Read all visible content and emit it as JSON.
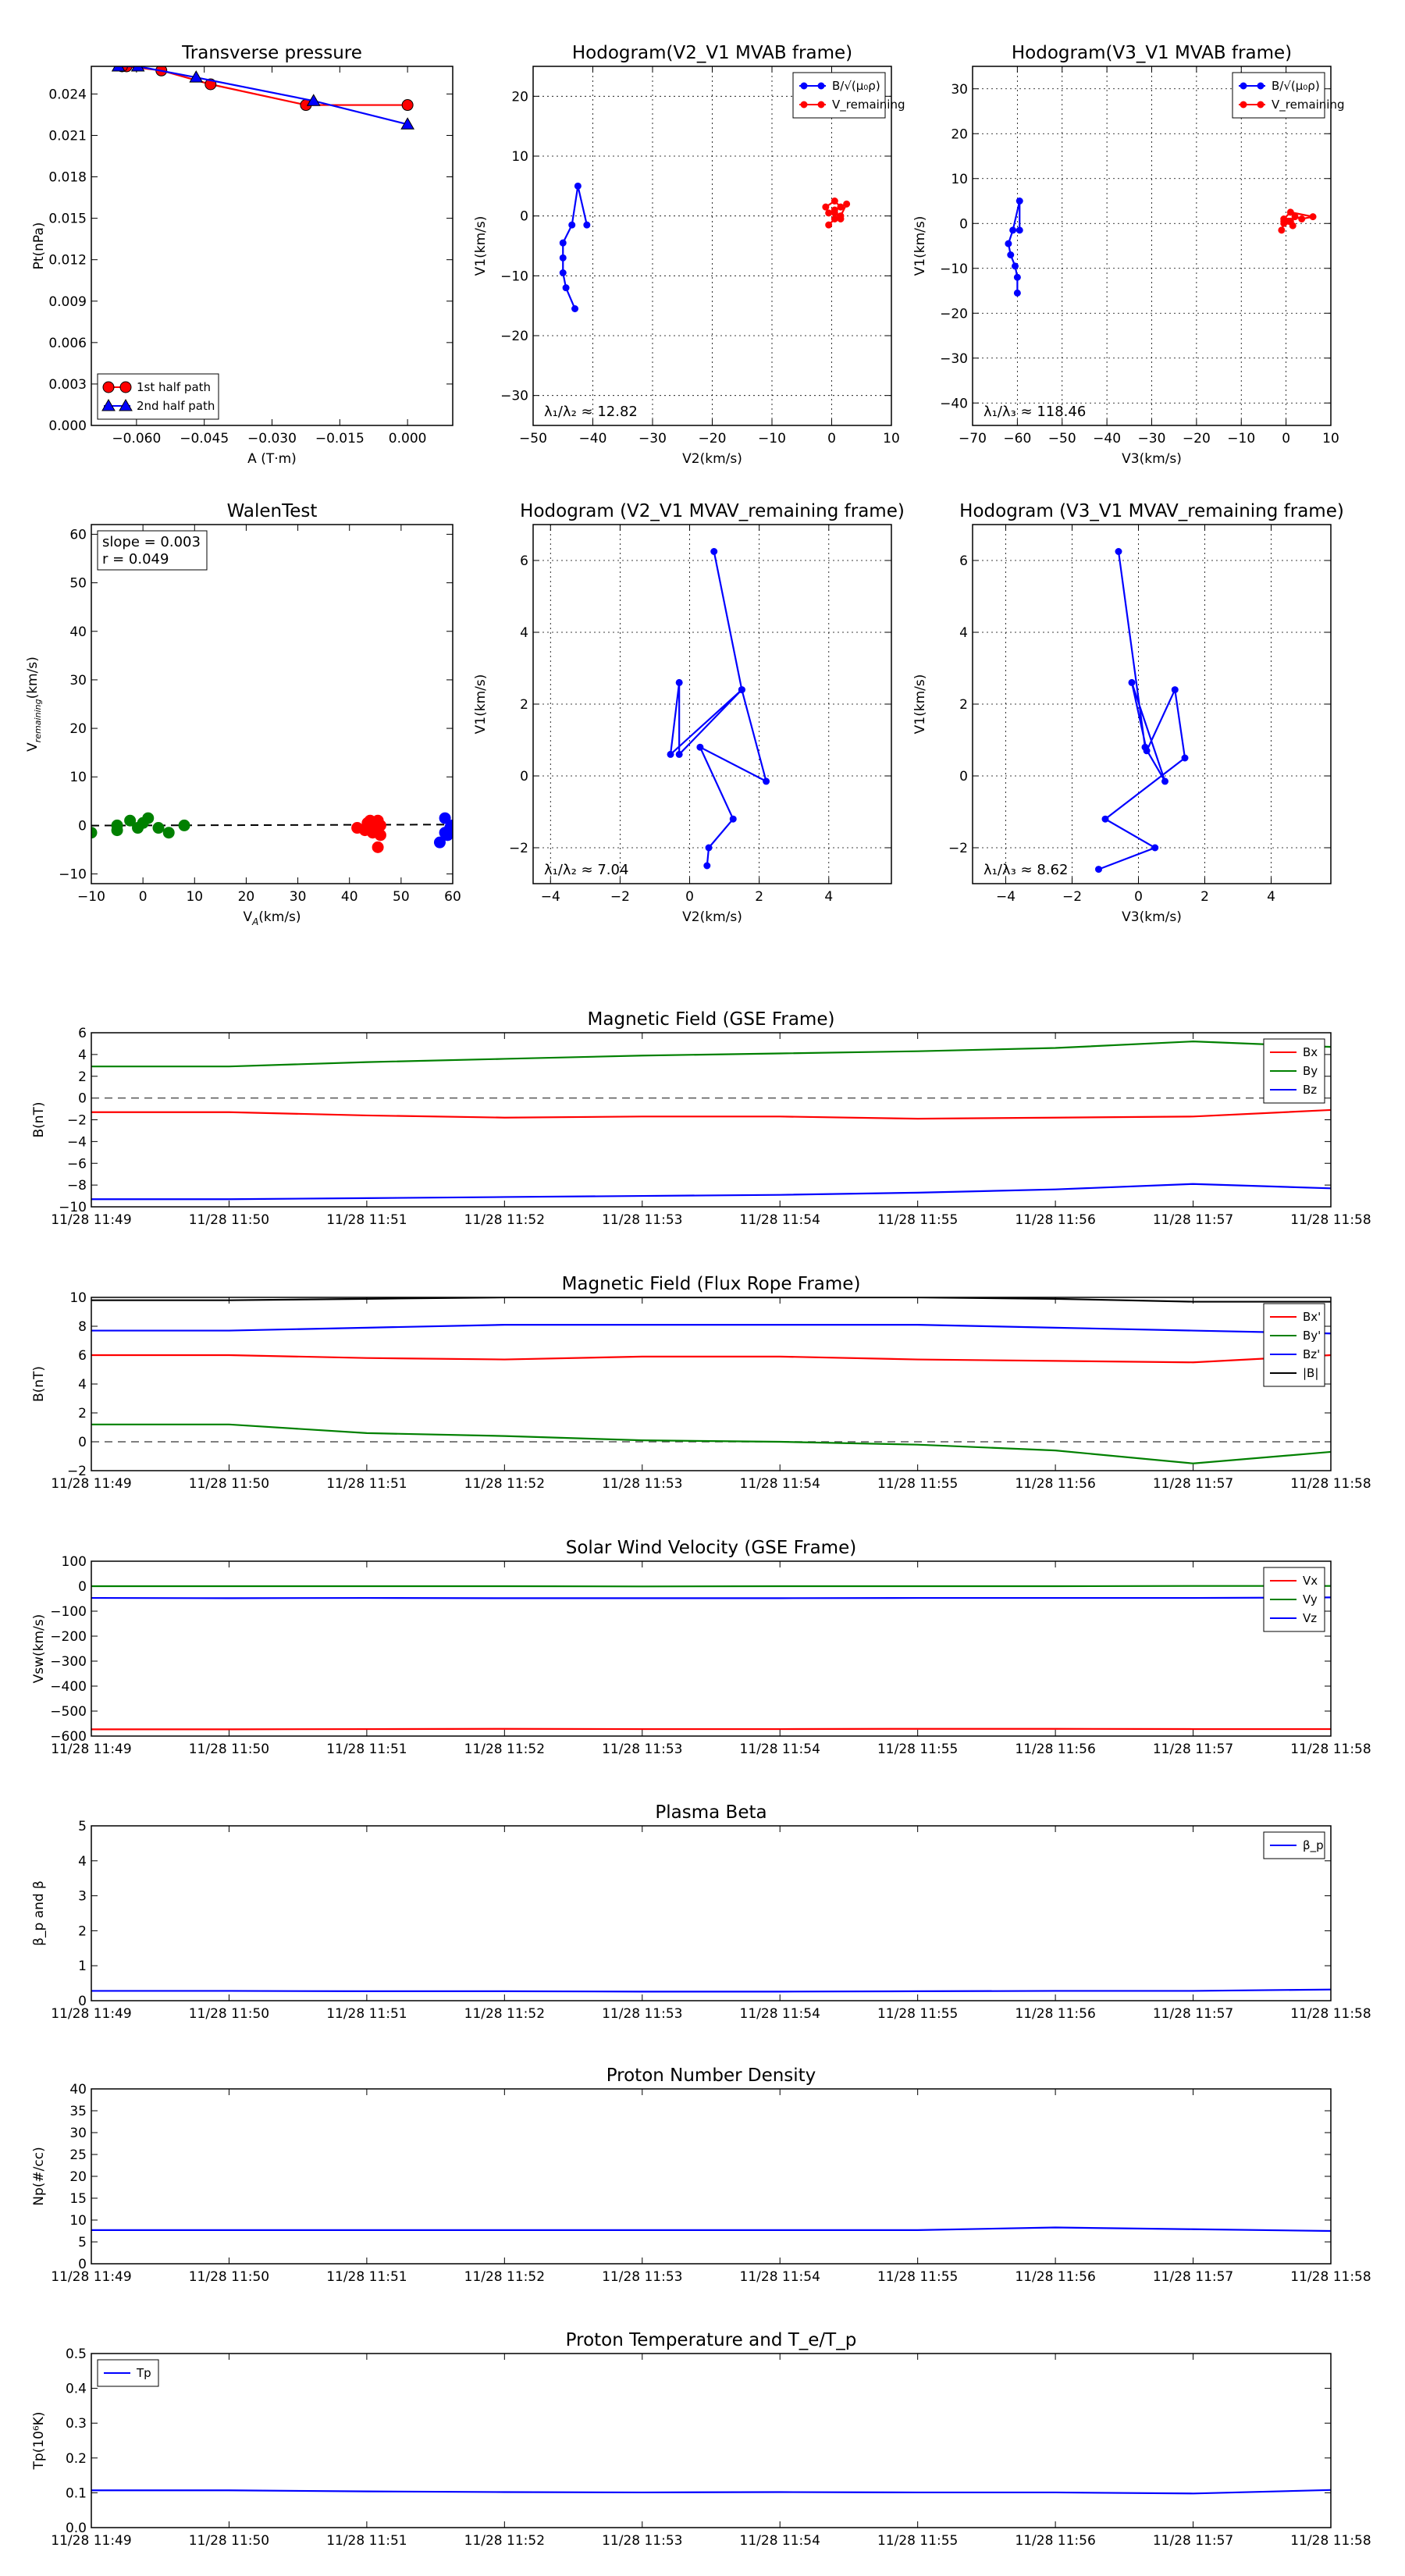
{
  "timeTicks": [
    "11/28 11:49",
    "11/28 11:50",
    "11/28 11:51",
    "11/28 11:52",
    "11/28 11:53",
    "11/28 11:54",
    "11/28 11:55",
    "11/28 11:56",
    "11/28 11:57",
    "11/28 11:58"
  ],
  "colors": {
    "red": "#ff0000",
    "green": "#008000",
    "blue": "#0000ff",
    "black": "#000000"
  },
  "chart_data": [
    {
      "id": "transverse-pressure",
      "type": "line",
      "title": "Transverse pressure",
      "xlabel": "A (T·m)",
      "ylabel": "Pt(nPa)",
      "xlim": [
        -0.07,
        0.01
      ],
      "ylim": [
        0,
        0.026
      ],
      "xticks": [
        -0.06,
        -0.045,
        -0.03,
        -0.015,
        0.0
      ],
      "xticklabels": [
        "−0.060",
        "−0.045",
        "−0.030",
        "−0.015",
        "0.000"
      ],
      "yticks": [
        0,
        0.003,
        0.006,
        0.009,
        0.012,
        0.015,
        0.018,
        0.021,
        0.024
      ],
      "yticklabels": [
        "0.000",
        "0.003",
        "0.006",
        "0.009",
        "0.012",
        "0.015",
        "0.018",
        "0.021",
        "0.024"
      ],
      "grid": false,
      "legend": "lower-left",
      "series": [
        {
          "name": "1st half path",
          "color": "red",
          "marker": "circle",
          "points": [
            [
              0.0,
              0.0232
            ],
            [
              -0.0225,
              0.0232
            ],
            [
              -0.0436,
              0.0247
            ],
            [
              -0.0545,
              0.0257
            ],
            [
              -0.0622,
              0.026
            ],
            [
              -0.0632,
              0.026
            ]
          ]
        },
        {
          "name": "2nd half path",
          "color": "blue",
          "marker": "triangle",
          "points": [
            [
              -0.064,
              0.026
            ],
            [
              -0.0597,
              0.026
            ],
            [
              -0.0468,
              0.0252
            ],
            [
              -0.0208,
              0.0235
            ],
            [
              0.0,
              0.0218
            ]
          ]
        }
      ]
    },
    {
      "id": "hodogram-v2-v1-mvab",
      "type": "scatter",
      "title": "Hodogram(V2_V1 MVAB frame)",
      "xlabel": "V2(km/s)",
      "ylabel": "V1(km/s)",
      "xlim": [
        -50,
        10
      ],
      "ylim": [
        -35,
        25
      ],
      "xticks": [
        -50,
        -40,
        -30,
        -20,
        -10,
        0,
        10
      ],
      "yticks": [
        -30,
        -20,
        -10,
        0,
        10,
        20
      ],
      "grid": true,
      "legend": "upper-right",
      "annotation": "λ₁/λ₂ ≈ 12.82",
      "series": [
        {
          "name": "B/√(μ₀ρ)",
          "color": "blue",
          "marker": "dot",
          "points": [
            [
              -41,
              -1.5
            ],
            [
              -42.5,
              5
            ],
            [
              -43.5,
              -1.5
            ],
            [
              -45,
              -4.5
            ],
            [
              -45,
              -7
            ],
            [
              -45,
              -9.5
            ],
            [
              -44.5,
              -12
            ],
            [
              -43,
              -15.5
            ]
          ]
        },
        {
          "name": "V_remaining",
          "color": "red",
          "marker": "dot",
          "points": [
            [
              -0.5,
              -1.5
            ],
            [
              0.5,
              -0.5
            ],
            [
              1.5,
              0
            ],
            [
              2.5,
              2
            ],
            [
              1.5,
              1.5
            ],
            [
              0.5,
              2.5
            ],
            [
              -1,
              1.5
            ],
            [
              -0.5,
              0.5
            ],
            [
              0.5,
              1
            ],
            [
              1.5,
              -0.5
            ],
            [
              0.5,
              0.5
            ]
          ]
        }
      ]
    },
    {
      "id": "hodogram-v3-v1-mvab",
      "type": "scatter",
      "title": "Hodogram(V3_V1 MVAB frame)",
      "xlabel": "V3(km/s)",
      "ylabel": "V1(km/s)",
      "xlim": [
        -70,
        10
      ],
      "ylim": [
        -45,
        35
      ],
      "xticks": [
        -70,
        -60,
        -50,
        -40,
        -30,
        -20,
        -10,
        0,
        10
      ],
      "yticks": [
        -40,
        -30,
        -20,
        -10,
        0,
        10,
        20,
        30
      ],
      "grid": true,
      "legend": "upper-right",
      "annotation": "λ₁/λ₃ ≈ 118.46",
      "series": [
        {
          "name": "B/√(μ₀ρ)",
          "color": "blue",
          "marker": "dot",
          "points": [
            [
              -59.5,
              -1.5
            ],
            [
              -59.5,
              5
            ],
            [
              -61,
              -1.5
            ],
            [
              -62,
              -4.5
            ],
            [
              -61.5,
              -7
            ],
            [
              -60.5,
              -9.5
            ],
            [
              -60,
              -12
            ],
            [
              -60,
              -15.5
            ]
          ]
        },
        {
          "name": "V_remaining",
          "color": "red",
          "marker": "dot",
          "points": [
            [
              -1,
              -1.5
            ],
            [
              -0.5,
              0
            ],
            [
              1,
              0.5
            ],
            [
              2,
              1.5
            ],
            [
              3.5,
              1
            ],
            [
              6,
              1.5
            ],
            [
              1,
              2.5
            ],
            [
              -0.5,
              1
            ],
            [
              0.5,
              0.5
            ],
            [
              1.5,
              -0.5
            ],
            [
              -0.5,
              0.5
            ]
          ]
        }
      ]
    },
    {
      "id": "walen-test",
      "type": "scatter",
      "title": "WalenTest",
      "xlabel": "V_A(km/s)",
      "ylabel": "V_remaining(km/s)",
      "xlim": [
        -10,
        60
      ],
      "ylim": [
        -12,
        62
      ],
      "xticks": [
        -10,
        0,
        10,
        20,
        30,
        40,
        50,
        60
      ],
      "yticks": [
        -10,
        0,
        10,
        20,
        30,
        40,
        50,
        60
      ],
      "grid": false,
      "annotation": [
        "slope = 0.003",
        "r = 0.049"
      ],
      "fit": {
        "slope": 0.003,
        "intercept": 0,
        "style": "dashed"
      },
      "series": [
        {
          "color": "green",
          "points": [
            [
              -10,
              -1.5
            ],
            [
              -5,
              -1
            ],
            [
              -5,
              0
            ],
            [
              -2.5,
              1
            ],
            [
              0,
              0.5
            ],
            [
              1,
              1.5
            ],
            [
              -1,
              -0.5
            ],
            [
              3,
              -0.5
            ],
            [
              5,
              -1.5
            ],
            [
              8,
              0
            ]
          ]
        },
        {
          "color": "red",
          "points": [
            [
              41.5,
              -0.5
            ],
            [
              43,
              -1
            ],
            [
              43.5,
              0.5
            ],
            [
              44,
              1
            ],
            [
              44.5,
              -1
            ],
            [
              45,
              0
            ],
            [
              45.5,
              1
            ],
            [
              46,
              0
            ],
            [
              46,
              -2
            ],
            [
              45.5,
              -4.5
            ],
            [
              44.5,
              -1.5
            ]
          ]
        },
        {
          "color": "blue",
          "points": [
            [
              57.5,
              -3.5
            ],
            [
              58.5,
              1.5
            ],
            [
              58.5,
              -1.5
            ],
            [
              59.5,
              -0.5
            ],
            [
              60,
              0
            ],
            [
              60.5,
              -1
            ],
            [
              61,
              -0.5
            ],
            [
              62,
              2
            ],
            [
              61.5,
              0
            ],
            [
              59,
              -2
            ]
          ]
        }
      ]
    },
    {
      "id": "hodogram-v2-v1-mvav",
      "type": "line",
      "title": "Hodogram (V2_V1 MVAV_remaining frame)",
      "xlabel": "V2(km/s)",
      "ylabel": "V1(km/s)",
      "xlim": [
        -4.5,
        5.8
      ],
      "ylim": [
        -3.0,
        7.0
      ],
      "xticks": [
        -4,
        -2,
        0,
        2,
        4
      ],
      "yticks": [
        -2,
        0,
        2,
        4,
        6
      ],
      "grid": true,
      "annotation": "λ₁/λ₂ ≈ 7.04",
      "series": [
        {
          "color": "blue",
          "marker": "dot",
          "points": [
            [
              0.7,
              6.25
            ],
            [
              1.5,
              2.4
            ],
            [
              -0.55,
              0.6
            ],
            [
              -0.3,
              2.6
            ],
            [
              -0.3,
              0.6
            ],
            [
              1.5,
              2.4
            ],
            [
              2.2,
              -0.15
            ],
            [
              0.3,
              0.8
            ],
            [
              1.25,
              -1.2
            ],
            [
              0.55,
              -2.0
            ],
            [
              0.5,
              -2.5
            ]
          ]
        }
      ]
    },
    {
      "id": "hodogram-v3-v1-mvav",
      "type": "line",
      "title": "Hodogram (V3_V1 MVAV_remaining frame)",
      "xlabel": "V3(km/s)",
      "ylabel": "V1(km/s)",
      "xlim": [
        -5,
        5.8
      ],
      "ylim": [
        -3.0,
        7.0
      ],
      "xticks": [
        -4,
        -2,
        0,
        2,
        4
      ],
      "yticks": [
        -2,
        0,
        2,
        4,
        6
      ],
      "grid": true,
      "annotation": "λ₁/λ₃ ≈ 8.62",
      "series": [
        {
          "color": "blue",
          "marker": "dot",
          "points": [
            [
              -0.6,
              6.25
            ],
            [
              0.2,
              0.8
            ],
            [
              0.8,
              -0.15
            ],
            [
              -0.2,
              2.6
            ],
            [
              0.25,
              0.7
            ],
            [
              1.1,
              2.4
            ],
            [
              1.4,
              0.5
            ],
            [
              -1.0,
              -1.2
            ],
            [
              0.5,
              -2.0
            ],
            [
              -1.2,
              -2.6
            ]
          ]
        }
      ]
    },
    {
      "id": "magnetic-field-gse",
      "type": "line",
      "title": "Magnetic Field (GSE Frame)",
      "ylabel": "B(nT)",
      "ylim": [
        -10,
        6
      ],
      "yticks": [
        -10,
        -8,
        -6,
        -4,
        -2,
        0,
        2,
        4,
        6
      ],
      "zero_line": true,
      "legend": "upper-right",
      "series": [
        {
          "name": "Bx",
          "color": "red",
          "values": [
            -1.3,
            -1.3,
            -1.6,
            -1.8,
            -1.7,
            -1.7,
            -1.9,
            -1.8,
            -1.7,
            -1.1
          ]
        },
        {
          "name": "By",
          "color": "green",
          "values": [
            2.9,
            2.9,
            3.3,
            3.6,
            3.9,
            4.1,
            4.3,
            4.6,
            5.2,
            4.7
          ]
        },
        {
          "name": "Bz",
          "color": "blue",
          "values": [
            -9.3,
            -9.3,
            -9.2,
            -9.1,
            -9.0,
            -8.9,
            -8.7,
            -8.4,
            -7.9,
            -8.3
          ]
        }
      ]
    },
    {
      "id": "magnetic-field-flux-rope",
      "type": "line",
      "title": "Magnetic Field (Flux Rope Frame)",
      "ylabel": "B(nT)",
      "ylim": [
        -2,
        10
      ],
      "yticks": [
        -2,
        0,
        2,
        4,
        6,
        8,
        10
      ],
      "zero_line": true,
      "legend": "upper-right",
      "series": [
        {
          "name": "Bx'",
          "color": "red",
          "values": [
            6.0,
            6.0,
            5.8,
            5.7,
            5.9,
            5.9,
            5.7,
            5.6,
            5.5,
            6.0
          ]
        },
        {
          "name": "By'",
          "color": "green",
          "values": [
            1.2,
            1.2,
            0.6,
            0.4,
            0.1,
            0.0,
            -0.2,
            -0.6,
            -1.5,
            -0.7
          ]
        },
        {
          "name": "Bz'",
          "color": "blue",
          "values": [
            7.7,
            7.7,
            7.9,
            8.1,
            8.1,
            8.1,
            8.1,
            7.9,
            7.7,
            7.5
          ]
        },
        {
          "name": "|B|",
          "color": "black",
          "values": [
            9.8,
            9.8,
            9.9,
            10.0,
            10.0,
            10.0,
            10.0,
            9.9,
            9.7,
            9.7
          ]
        }
      ]
    },
    {
      "id": "solar-wind-velocity",
      "type": "line",
      "title": "Solar Wind Velocity (GSE Frame)",
      "ylabel": "Vsw(km/s)",
      "ylim": [
        -600,
        100
      ],
      "yticks": [
        -600,
        -500,
        -400,
        -300,
        -200,
        -100,
        0,
        100
      ],
      "legend": "upper-right",
      "series": [
        {
          "name": "Vx",
          "color": "red",
          "values": [
            -573,
            -573,
            -572,
            -571,
            -572,
            -572,
            -571,
            -571,
            -572,
            -572
          ]
        },
        {
          "name": "Vy",
          "color": "green",
          "values": [
            0,
            0,
            0,
            0,
            -1,
            0,
            0,
            0,
            1,
            1
          ]
        },
        {
          "name": "Vz",
          "color": "blue",
          "values": [
            -47,
            -48,
            -47,
            -48,
            -48,
            -48,
            -47,
            -47,
            -47,
            -45
          ]
        }
      ]
    },
    {
      "id": "plasma-beta",
      "type": "line",
      "title": "Plasma Beta",
      "ylabel": "β_p and β",
      "ylim": [
        0,
        5
      ],
      "yticks": [
        0,
        1,
        2,
        3,
        4,
        5
      ],
      "legend": "upper-right",
      "series": [
        {
          "name": "β_p",
          "color": "blue",
          "values": [
            0.28,
            0.28,
            0.27,
            0.27,
            0.26,
            0.26,
            0.27,
            0.28,
            0.28,
            0.32
          ]
        }
      ]
    },
    {
      "id": "proton-number-density",
      "type": "line",
      "title": "Proton Number Density",
      "ylabel": "Np(#/cc)",
      "ylim": [
        0,
        40
      ],
      "yticks": [
        0,
        5,
        10,
        15,
        20,
        25,
        30,
        35,
        40
      ],
      "series": [
        {
          "color": "blue",
          "values": [
            7.7,
            7.7,
            7.7,
            7.7,
            7.7,
            7.7,
            7.7,
            8.3,
            7.9,
            7.5
          ]
        }
      ]
    },
    {
      "id": "proton-temperature",
      "type": "line",
      "title": "Proton Temperature and T_e/T_p",
      "ylabel": "Tp(10⁶K)",
      "ylim": [
        0,
        0.5
      ],
      "yticks": [
        0,
        0.1,
        0.2,
        0.3,
        0.4,
        0.5
      ],
      "yticklabels": [
        "0.0",
        "0.1",
        "0.2",
        "0.3",
        "0.4",
        "0.5"
      ],
      "legend": "upper-left",
      "series": [
        {
          "name": "Tp",
          "color": "blue",
          "values": [
            0.107,
            0.107,
            0.104,
            0.102,
            0.101,
            0.102,
            0.101,
            0.101,
            0.098,
            0.108
          ]
        }
      ]
    }
  ]
}
